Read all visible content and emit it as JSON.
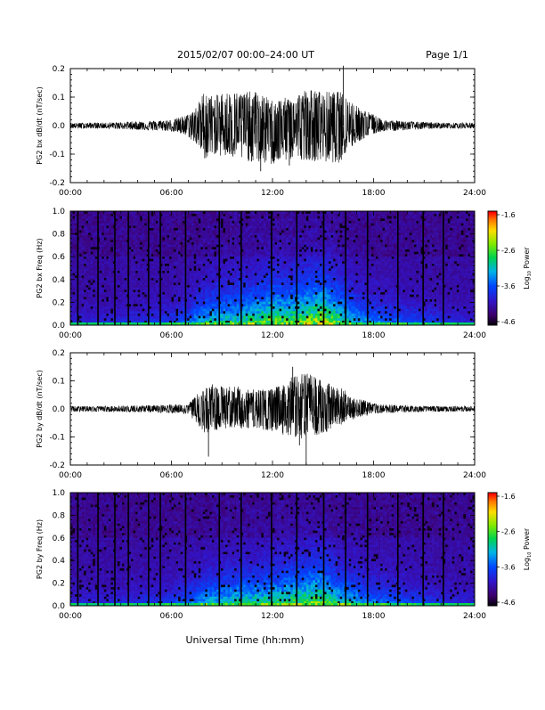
{
  "header": {
    "title": "2015/02/07  00:00–24:00 UT",
    "page": "Page 1/1"
  },
  "footer": {
    "xlabel": "Universal Time (hh:mm)"
  },
  "chart_data": [
    {
      "type": "line",
      "title": "",
      "ylabel": "PG2 bx dB/dt (nT/sec)",
      "xlabel": "",
      "xlim": [
        0,
        24
      ],
      "ylim": [
        -0.2,
        0.2
      ],
      "x_tick_labels": [
        "00:00",
        "06:00",
        "12:00",
        "18:00",
        "24:00"
      ],
      "y_tick_labels": [
        "0.2",
        "0.1",
        "0.0",
        "-0.1",
        "-0.2"
      ],
      "envelope": {
        "hours": [
          0,
          2,
          4,
          6,
          7,
          7.5,
          8,
          8.5,
          9,
          10,
          11,
          12,
          13,
          14,
          15,
          16,
          16.5,
          17,
          18,
          18.5,
          19,
          20,
          22,
          24
        ],
        "upper": [
          0.01,
          0.01,
          0.015,
          0.02,
          0.04,
          0.07,
          0.13,
          0.1,
          0.12,
          0.12,
          0.12,
          0.09,
          0.1,
          0.13,
          0.12,
          0.12,
          0.1,
          0.07,
          0.04,
          0.02,
          0.02,
          0.015,
          0.01,
          0.01
        ],
        "lower": [
          -0.01,
          -0.01,
          -0.015,
          -0.02,
          -0.04,
          -0.07,
          -0.12,
          -0.1,
          -0.11,
          -0.12,
          -0.13,
          -0.14,
          -0.12,
          -0.12,
          -0.13,
          -0.13,
          -0.09,
          -0.06,
          -0.03,
          -0.02,
          -0.02,
          -0.015,
          -0.01,
          -0.01
        ]
      },
      "spikes": [
        {
          "hour": 16.2,
          "value": 0.21
        },
        {
          "hour": 11.3,
          "value": -0.16
        },
        {
          "hour": 13.0,
          "value": -0.14
        }
      ]
    },
    {
      "type": "heatmap",
      "title": "",
      "ylabel": "PG2 bx Freq (Hz)",
      "xlabel": "",
      "xlim": [
        0,
        24
      ],
      "ylim": [
        0,
        1.0
      ],
      "x_tick_labels": [
        "00:00",
        "06:00",
        "12:00",
        "18:00",
        "24:00"
      ],
      "y_tick_labels": [
        "1.0",
        "0.8",
        "0.6",
        "0.4",
        "0.2",
        "0.0"
      ],
      "colorbar": {
        "label": "Log10 Power",
        "label_main": "Log",
        "label_sub": "10",
        "label_rest": " Power",
        "ticks": [
          "-1.6",
          "-2.6",
          "-3.6",
          "-4.6"
        ],
        "range": [
          -4.6,
          -1.6
        ]
      },
      "activity_hours": [
        0,
        2,
        4,
        6,
        7,
        8,
        9,
        10,
        11,
        12,
        13,
        14,
        15,
        16,
        17,
        18,
        19,
        20,
        22,
        24
      ],
      "activity_level": [
        0.15,
        0.15,
        0.2,
        0.25,
        0.35,
        0.55,
        0.6,
        0.65,
        0.7,
        0.8,
        0.75,
        0.85,
        0.9,
        0.7,
        0.5,
        0.4,
        0.35,
        0.3,
        0.2,
        0.15
      ],
      "gap_hours": [
        0.4,
        1.6,
        2.6,
        3.4,
        4.6,
        5.3,
        6.8,
        8.8,
        10.1,
        11.9,
        13.4,
        15.0,
        16.3,
        17.6,
        19.4,
        20.9,
        22.1
      ]
    },
    {
      "type": "line",
      "title": "",
      "ylabel": "PG2 by dB/dt (nT/sec)",
      "xlabel": "",
      "xlim": [
        0,
        24
      ],
      "ylim": [
        -0.2,
        0.2
      ],
      "x_tick_labels": [
        "00:00",
        "06:00",
        "12:00",
        "18:00",
        "24:00"
      ],
      "y_tick_labels": [
        "0.2",
        "0.1",
        "0.0",
        "-0.1",
        "-0.2"
      ],
      "envelope": {
        "hours": [
          0,
          2,
          4,
          6,
          7,
          7.5,
          8,
          8.5,
          9,
          10,
          11,
          12,
          13,
          14,
          15,
          16,
          16.5,
          17,
          18,
          18.5,
          19,
          20,
          22,
          24
        ],
        "upper": [
          0.01,
          0.01,
          0.012,
          0.015,
          0.02,
          0.05,
          0.08,
          0.09,
          0.08,
          0.08,
          0.07,
          0.07,
          0.11,
          0.13,
          0.1,
          0.08,
          0.06,
          0.04,
          0.02,
          0.015,
          0.015,
          0.012,
          0.01,
          0.01
        ],
        "lower": [
          -0.01,
          -0.01,
          -0.012,
          -0.015,
          -0.02,
          -0.05,
          -0.09,
          -0.08,
          -0.07,
          -0.07,
          -0.07,
          -0.08,
          -0.1,
          -0.11,
          -0.09,
          -0.06,
          -0.05,
          -0.03,
          -0.02,
          -0.015,
          -0.015,
          -0.012,
          -0.01,
          -0.01
        ]
      },
      "spikes": [
        {
          "hour": 8.2,
          "value": -0.17
        },
        {
          "hour": 13.2,
          "value": 0.15
        },
        {
          "hour": 14.0,
          "value": -0.2
        },
        {
          "hour": 13.6,
          "value": -0.13
        }
      ]
    },
    {
      "type": "heatmap",
      "title": "",
      "ylabel": "PG2 by Freq (Hz)",
      "xlabel": "",
      "xlim": [
        0,
        24
      ],
      "ylim": [
        0,
        1.0
      ],
      "x_tick_labels": [
        "00:00",
        "06:00",
        "12:00",
        "18:00",
        "24:00"
      ],
      "y_tick_labels": [
        "1.0",
        "0.8",
        "0.6",
        "0.4",
        "0.2",
        "0.0"
      ],
      "colorbar": {
        "label": "Log10 Power",
        "label_main": "Log",
        "label_sub": "10",
        "label_rest": " Power",
        "ticks": [
          "-1.6",
          "-2.6",
          "-3.6",
          "-4.6"
        ],
        "range": [
          -4.6,
          -1.6
        ]
      },
      "activity_hours": [
        0,
        2,
        4,
        6,
        7,
        8,
        9,
        10,
        11,
        12,
        13,
        14,
        15,
        16,
        17,
        18,
        19,
        20,
        22,
        24
      ],
      "activity_level": [
        0.15,
        0.15,
        0.2,
        0.25,
        0.35,
        0.5,
        0.55,
        0.6,
        0.6,
        0.65,
        0.7,
        0.75,
        0.8,
        0.6,
        0.5,
        0.4,
        0.35,
        0.3,
        0.2,
        0.15
      ],
      "gap_hours": [
        0.4,
        1.6,
        2.6,
        3.4,
        4.6,
        5.3,
        6.8,
        8.8,
        10.1,
        11.9,
        13.4,
        15.0,
        16.3,
        17.6,
        19.4,
        20.9,
        22.1
      ]
    }
  ]
}
